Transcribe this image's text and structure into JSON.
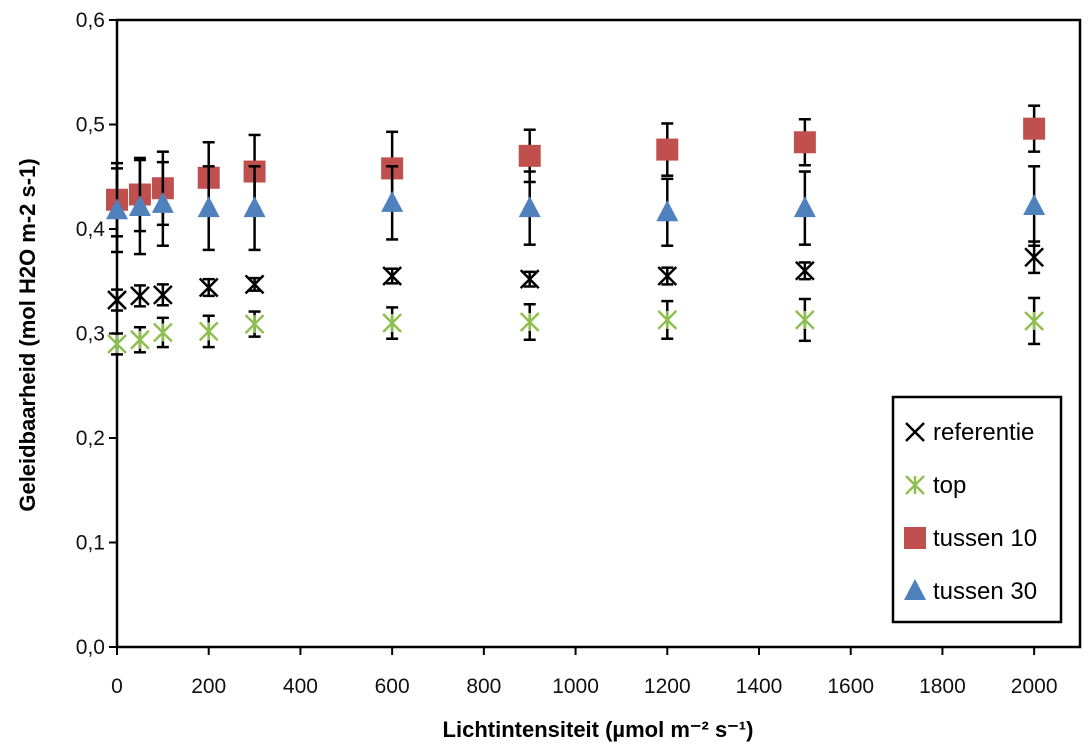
{
  "chart_data": {
    "type": "scatter",
    "xlabel": "Lichtintensiteit (µmol m⁻² s⁻¹)",
    "ylabel": "Geleidbaarheid (mol H2O  m-2 s-1)",
    "xlim": [
      0,
      2100
    ],
    "ylim": [
      0.0,
      0.6
    ],
    "x_ticks": [
      0,
      200,
      400,
      600,
      800,
      1000,
      1200,
      1400,
      1600,
      1800,
      2000
    ],
    "x_tick_labels": [
      "0",
      "200",
      "400",
      "600",
      "800",
      "1000",
      "1200",
      "1400",
      "1600",
      "1800",
      "2000"
    ],
    "y_ticks": [
      0.0,
      0.1,
      0.2,
      0.3,
      0.4,
      0.5,
      0.6
    ],
    "y_tick_labels": [
      "0,0",
      "0,1",
      "0,2",
      "0,3",
      "0,4",
      "0,5",
      "0,6"
    ],
    "legend_position": "right",
    "grid": false,
    "series": [
      {
        "name": "referentie",
        "marker": "x",
        "color": "#000000",
        "x": [
          0,
          50,
          100,
          200,
          300,
          600,
          900,
          1200,
          1500,
          2000
        ],
        "y": [
          0.332,
          0.336,
          0.337,
          0.344,
          0.347,
          0.355,
          0.352,
          0.355,
          0.36,
          0.373
        ],
        "error": [
          0.01,
          0.01,
          0.01,
          0.008,
          0.006,
          0.007,
          0.007,
          0.008,
          0.008,
          0.015
        ]
      },
      {
        "name": "top",
        "marker": "asterisk",
        "color": "#8fbf50",
        "x": [
          0,
          50,
          100,
          200,
          300,
          600,
          900,
          1200,
          1500,
          2000
        ],
        "y": [
          0.29,
          0.294,
          0.301,
          0.302,
          0.309,
          0.31,
          0.311,
          0.313,
          0.313,
          0.312
        ],
        "error": [
          0.01,
          0.012,
          0.014,
          0.015,
          0.012,
          0.015,
          0.017,
          0.018,
          0.02,
          0.022
        ]
      },
      {
        "name": "tussen 10",
        "marker": "square",
        "color": "#c0504d",
        "x": [
          0,
          50,
          100,
          200,
          300,
          600,
          900,
          1200,
          1500,
          2000
        ],
        "y": [
          0.428,
          0.433,
          0.439,
          0.449,
          0.455,
          0.458,
          0.47,
          0.476,
          0.483,
          0.496
        ],
        "error": [
          0.035,
          0.035,
          0.035,
          0.034,
          0.035,
          0.035,
          0.025,
          0.025,
          0.022,
          0.022
        ]
      },
      {
        "name": "tussen 30",
        "marker": "triangle",
        "color": "#4f81bd",
        "x": [
          0,
          50,
          100,
          200,
          300,
          600,
          900,
          1200,
          1500,
          2000
        ],
        "y": [
          0.418,
          0.421,
          0.424,
          0.42,
          0.42,
          0.425,
          0.42,
          0.416,
          0.42,
          0.422
        ],
        "error": [
          0.04,
          0.045,
          0.04,
          0.04,
          0.04,
          0.035,
          0.035,
          0.032,
          0.035,
          0.038
        ]
      }
    ]
  }
}
